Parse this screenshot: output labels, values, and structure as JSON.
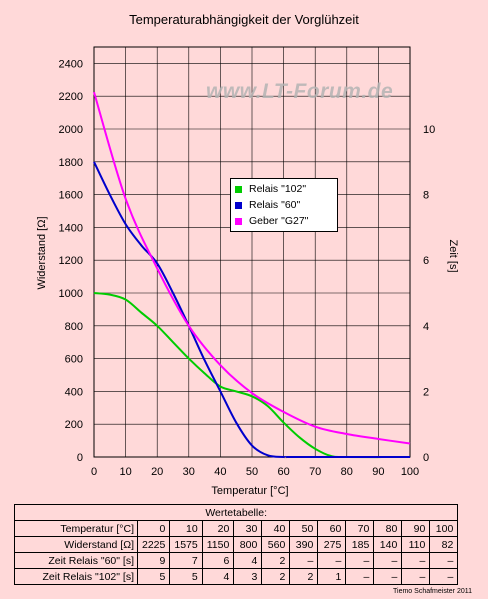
{
  "title": "Temperaturabhängigkeit der Vorglühzeit",
  "watermark": "www.LT-Forum.de",
  "credit": "Tiemo Schafmeister 2011",
  "chart_data": {
    "type": "line",
    "xlabel": "Temperatur [°C]",
    "ylabel": "Widerstand   [Ω]",
    "y2label": "Zeit [s]",
    "xlim": [
      0,
      100
    ],
    "ylim": [
      0,
      2500
    ],
    "y2lim": [
      0,
      12.5
    ],
    "xticks": [
      0,
      10,
      20,
      30,
      40,
      50,
      60,
      70,
      80,
      90,
      100
    ],
    "yticks": [
      0,
      200,
      400,
      600,
      800,
      1000,
      1200,
      1400,
      1600,
      1800,
      2000,
      2200,
      2400
    ],
    "y2ticks": [
      0,
      2,
      4,
      6,
      8,
      10
    ],
    "grid": true,
    "legend_position": "center-right",
    "series": [
      {
        "name": "Relais \"102\"",
        "color": "#00cc00",
        "axis": "right",
        "x": [
          0,
          5,
          10,
          15,
          20,
          25,
          30,
          35,
          40,
          45,
          50,
          55,
          60,
          65,
          70,
          75,
          80,
          100
        ],
        "y": [
          5,
          4.95,
          4.8,
          4.4,
          4.0,
          3.5,
          3.0,
          2.55,
          2.15,
          2.0,
          1.85,
          1.55,
          1.05,
          0.6,
          0.25,
          0.03,
          0,
          0
        ]
      },
      {
        "name": "Relais \"60\"",
        "color": "#0000cc",
        "axis": "right",
        "x": [
          0,
          5,
          10,
          15,
          20,
          25,
          30,
          35,
          40,
          45,
          50,
          55,
          60,
          65,
          100
        ],
        "y": [
          9,
          8.0,
          7.1,
          6.45,
          5.9,
          5.0,
          4.0,
          2.95,
          2.0,
          1.05,
          0.35,
          0.05,
          0,
          0,
          0
        ]
      },
      {
        "name": "Geber \"G27\"",
        "color": "#ff00ff",
        "axis": "left",
        "x": [
          0,
          10,
          20,
          30,
          40,
          50,
          60,
          70,
          80,
          90,
          100
        ],
        "y": [
          2225,
          1575,
          1150,
          800,
          560,
          390,
          275,
          185,
          140,
          110,
          82
        ]
      }
    ]
  },
  "table": {
    "caption": "Wertetabelle:",
    "rows": [
      {
        "label": "Temperatur [°C]",
        "values": [
          "0",
          "10",
          "20",
          "30",
          "40",
          "50",
          "60",
          "70",
          "80",
          "90",
          "100"
        ]
      },
      {
        "label": "Widerstand   [Ω]",
        "values": [
          "2225",
          "1575",
          "1150",
          "800",
          "560",
          "390",
          "275",
          "185",
          "140",
          "110",
          "82"
        ]
      },
      {
        "label": "Zeit Relais \"60\" [s]",
        "values": [
          "9",
          "7",
          "6",
          "4",
          "2",
          "–",
          "–",
          "–",
          "–",
          "–",
          "–"
        ]
      },
      {
        "label": "Zeit Relais \"102\" [s]",
        "values": [
          "5",
          "5",
          "4",
          "3",
          "2",
          "2",
          "1",
          "–",
          "–",
          "–",
          "–"
        ]
      }
    ]
  }
}
